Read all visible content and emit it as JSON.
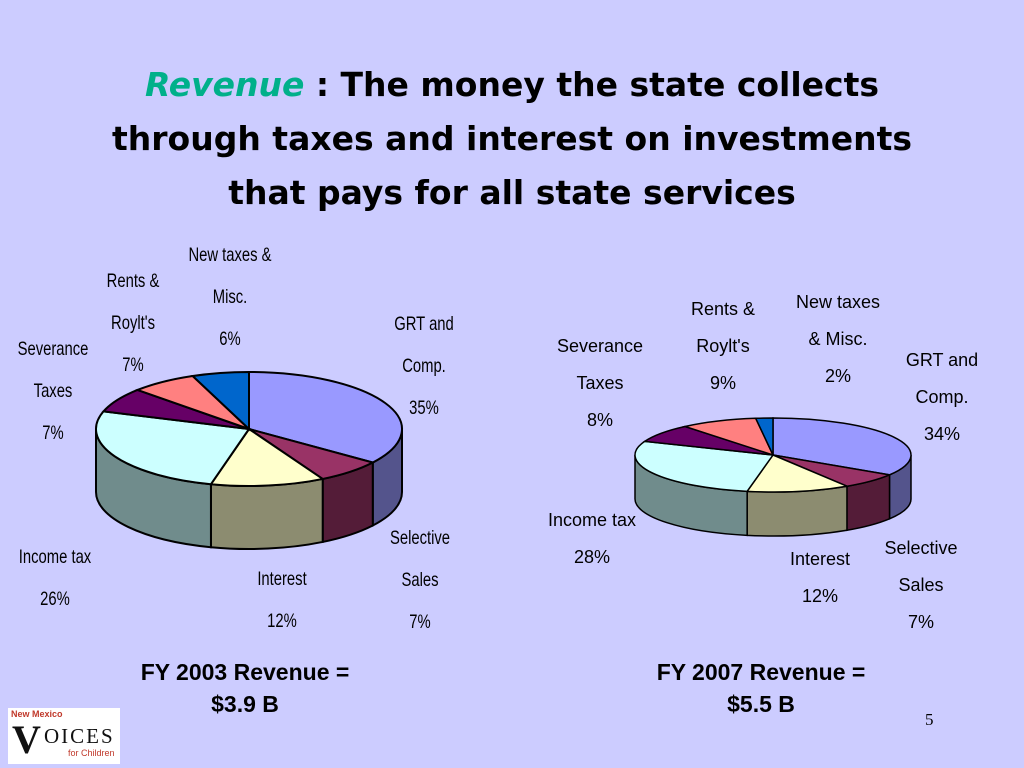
{
  "slide": {
    "title_keyword": "Revenue",
    "title_line1_rest": " : The money the state collects",
    "title_line2": "through taxes and interest on investments",
    "title_line3": "that pays for all state services",
    "page_number": "5"
  },
  "logo": {
    "top": "New Mexico",
    "big_letter": "V",
    "word": "OICES",
    "bottom": "for Children"
  },
  "chart_data": [
    {
      "type": "pie",
      "caption_line1": "FY 2003 Revenue =",
      "caption_line2": "$3.9 B",
      "slices": [
        {
          "label": [
            "GRT and",
            "Comp.",
            "35%"
          ],
          "value": 35,
          "color": "#9999ff"
        },
        {
          "label": [
            "Selective",
            "Sales",
            "7%"
          ],
          "value": 7,
          "color": "#993366"
        },
        {
          "label": [
            "Interest",
            "12%"
          ],
          "value": 12,
          "color": "#ffffcc"
        },
        {
          "label": [
            "Income tax",
            "26%"
          ],
          "value": 26,
          "color": "#ccffff"
        },
        {
          "label": [
            "Severance",
            "Taxes",
            "7%"
          ],
          "value": 7,
          "color": "#660066"
        },
        {
          "label": [
            "Rents &",
            "Roylt's",
            "7%"
          ],
          "value": 7,
          "color": "#ff8080"
        },
        {
          "label": [
            "New taxes &",
            "Misc.",
            "6%"
          ],
          "value": 6,
          "color": "#0066cc"
        }
      ]
    },
    {
      "type": "pie",
      "caption_line1": "FY 2007 Revenue =",
      "caption_line2": "$5.5 B",
      "slices": [
        {
          "label": [
            "GRT and",
            "Comp.",
            "34%"
          ],
          "value": 34,
          "color": "#9999ff"
        },
        {
          "label": [
            "Selective",
            "Sales",
            "7%"
          ],
          "value": 7,
          "color": "#993366"
        },
        {
          "label": [
            "Interest",
            "12%"
          ],
          "value": 12,
          "color": "#ffffcc"
        },
        {
          "label": [
            "Income tax",
            "28%"
          ],
          "value": 28,
          "color": "#ccffff"
        },
        {
          "label": [
            "Severance",
            "Taxes",
            "8%"
          ],
          "value": 8,
          "color": "#660066"
        },
        {
          "label": [
            "Rents &",
            "Roylt's",
            "9%"
          ],
          "value": 9,
          "color": "#ff8080"
        },
        {
          "label": [
            "New taxes",
            "& Misc.",
            "2%"
          ],
          "value": 2,
          "color": "#0066cc"
        }
      ]
    }
  ]
}
